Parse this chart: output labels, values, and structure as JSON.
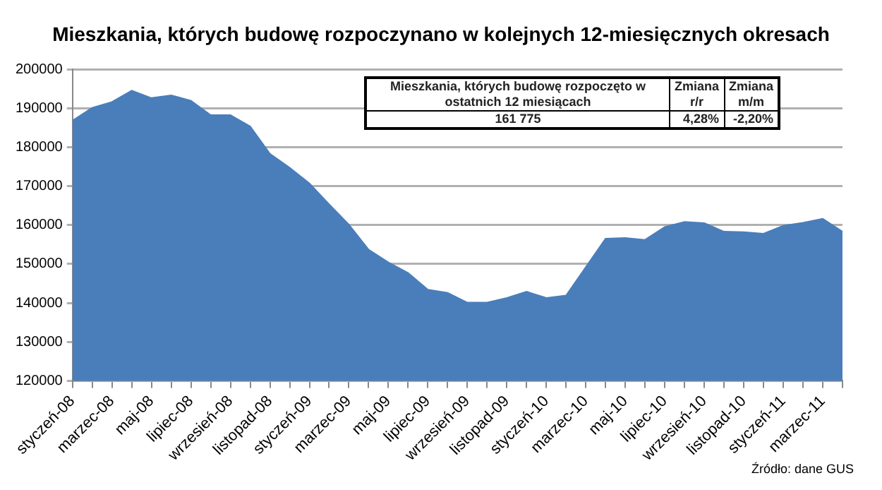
{
  "chart_data": {
    "type": "area",
    "title": "Mieszkania, których budowę rozpoczynano w kolejnych 12-miesięcznych okresach",
    "categories": [
      "styczeń-08",
      null,
      "marzec-08",
      null,
      "maj-08",
      null,
      "lipiec-08",
      null,
      "wrzesień-08",
      null,
      "listopad-08",
      null,
      "styczeń-09",
      null,
      "marzec-09",
      null,
      "maj-09",
      null,
      "lipiec-09",
      null,
      "wrzesień-09",
      null,
      "listopad-09",
      null,
      "styczeń-10",
      null,
      "marzec-10",
      null,
      "maj-10",
      null,
      "lipiec-10",
      null,
      "wrzesień-10",
      null,
      "listopad-10",
      null,
      "styczeń-11",
      null,
      "marzec-11",
      null
    ],
    "series": [
      {
        "color": "#4a7ebb",
        "values": [
          186800,
          190100,
          191600,
          194500,
          192600,
          193300,
          191900,
          188200,
          188200,
          185300,
          178300,
          174700,
          170700,
          165300,
          160100,
          153700,
          150400,
          147700,
          143400,
          142600,
          140100,
          140100,
          141300,
          142900,
          141300,
          141900,
          149200,
          156500,
          156700,
          156200,
          159500,
          160800,
          160500,
          158300,
          158200,
          157800,
          159800,
          160600,
          161600,
          158300
        ]
      }
    ],
    "ylim": [
      120000,
      200000
    ],
    "yticks": [
      120000,
      130000,
      140000,
      150000,
      160000,
      170000,
      180000,
      190000,
      200000
    ],
    "grid": "y",
    "legend": false,
    "annotations": [
      "Mieszkania, których budowę rozpoczęto w ostatnich 12 miesiącach",
      "Zmiana r/r",
      "Zmiana m/m",
      "161 775",
      "4,28%",
      "-2,20%",
      "Źródło: dane GUS"
    ]
  }
}
